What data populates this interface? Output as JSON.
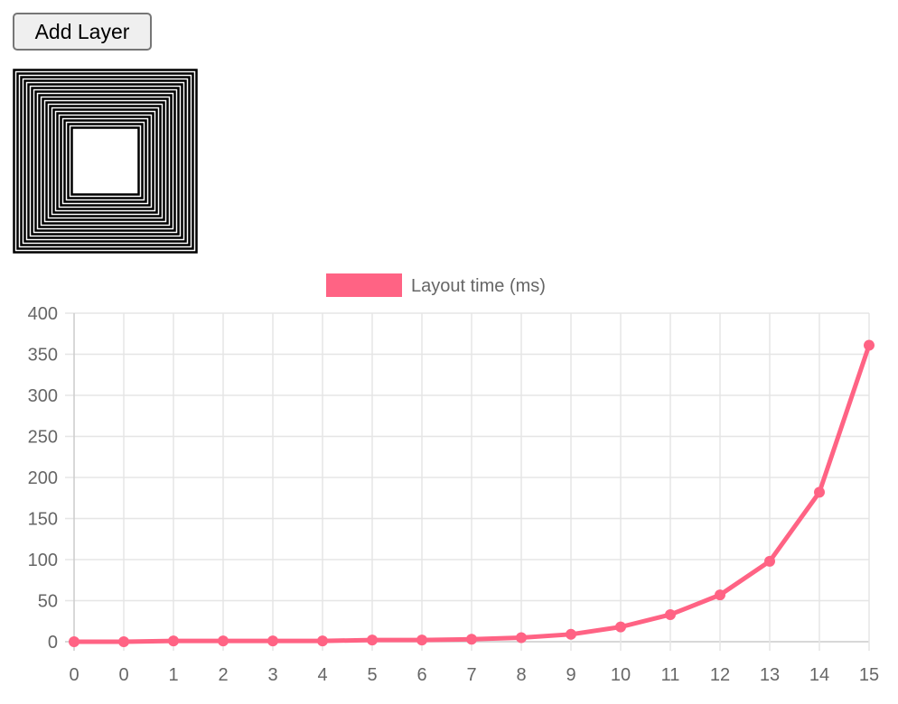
{
  "toolbar": {
    "add_layer_label": "Add Layer"
  },
  "layers": {
    "count": 17
  },
  "chart_data": {
    "type": "line",
    "categories": [
      "0",
      "0",
      "1",
      "2",
      "3",
      "4",
      "5",
      "6",
      "7",
      "8",
      "9",
      "10",
      "11",
      "12",
      "13",
      "14",
      "15"
    ],
    "series": [
      {
        "name": "Layout time (ms)",
        "values": [
          0,
          0,
          1,
          1,
          1,
          1,
          2,
          2,
          3,
          5,
          9,
          18,
          33,
          57,
          98,
          182,
          361
        ],
        "color": "#ff6384"
      }
    ],
    "ylim": [
      0,
      400
    ],
    "yticks": [
      0,
      50,
      100,
      150,
      200,
      250,
      300,
      350,
      400
    ],
    "grid": true,
    "legend": "top"
  }
}
